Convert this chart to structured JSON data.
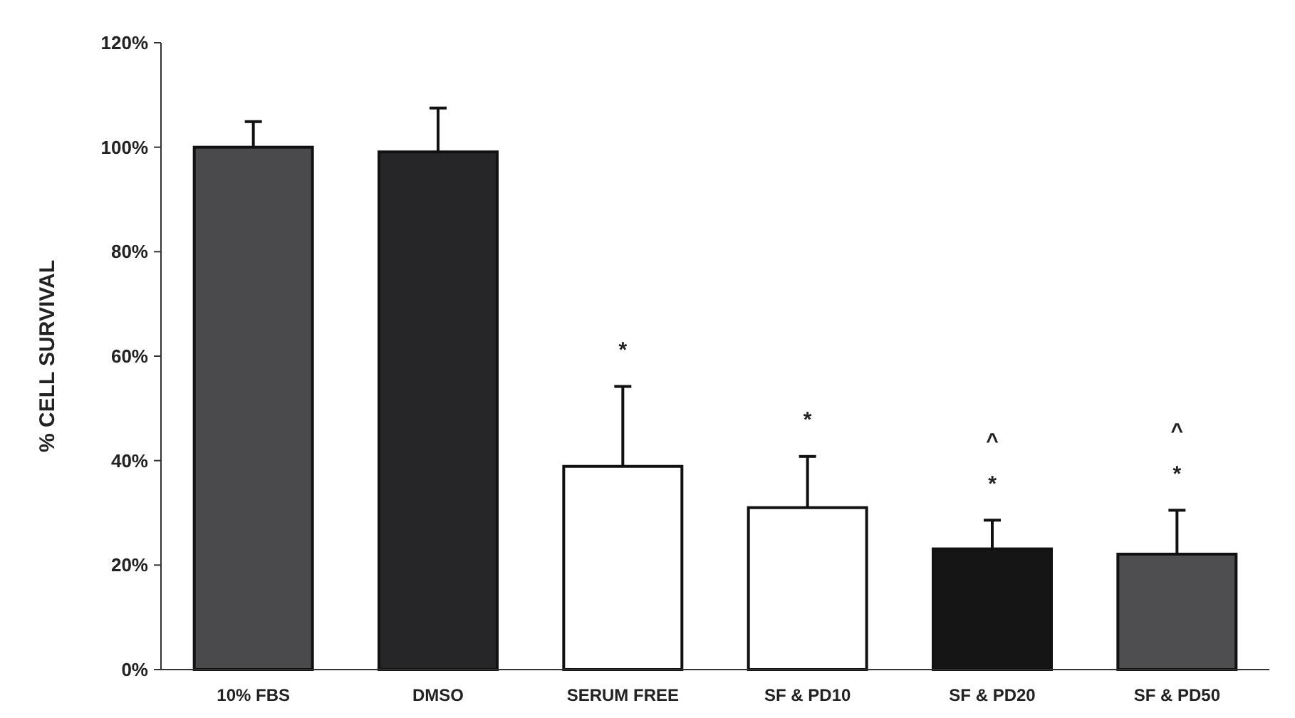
{
  "chart_data": {
    "type": "bar",
    "ylabel": "% CELL SURVIVAL",
    "categories": [
      "10% FBS",
      "DMSO",
      "SERUM FREE",
      "SF & PD10",
      "SF & PD20",
      "SF & PD50"
    ],
    "values": [
      100,
      99.1,
      38.9,
      31.0,
      23.1,
      22.1
    ],
    "errors": [
      [
        100,
        104.9
      ],
      [
        99.1,
        107.5
      ],
      [
        38.9,
        54.2
      ],
      [
        31.0,
        40.8
      ],
      [
        23.1,
        28.6
      ],
      [
        22.1,
        30.5
      ]
    ],
    "colors": [
      "#4a4a4c",
      "#262628",
      "#ffffff",
      "#ffffff",
      "#151515",
      "#4e4e50"
    ],
    "ylim": [
      0,
      120
    ],
    "yticks": [
      {
        "value": 0,
        "label": "0%"
      },
      {
        "value": 20,
        "label": "20%"
      },
      {
        "value": 40,
        "label": "40%"
      },
      {
        "value": 60,
        "label": "60%"
      },
      {
        "value": 80,
        "label": "80%"
      },
      {
        "value": 100,
        "label": "100%"
      },
      {
        "value": 120,
        "label": "120%"
      }
    ],
    "grid": false,
    "annotations": [
      "*",
      "*",
      "*",
      "^",
      "*",
      "^"
    ]
  }
}
